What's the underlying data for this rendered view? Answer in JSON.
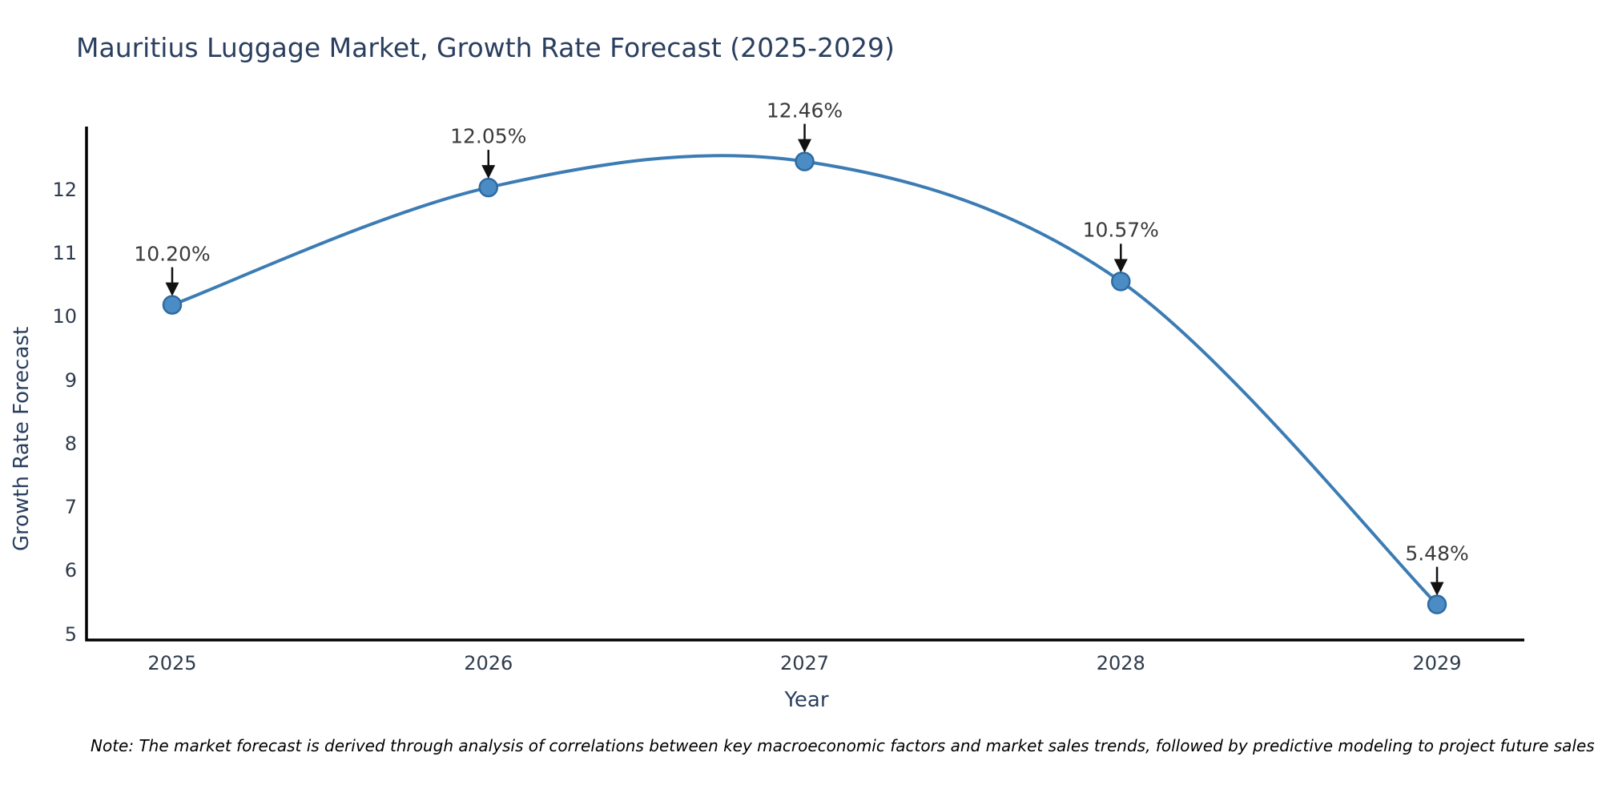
{
  "title": "Mauritius Luggage Market, Growth Rate Forecast (2025-2029)",
  "note": "Note: The market forecast is derived through analysis of correlations between key macroeconomic factors and market sales trends, followed by predictive modeling to project future sales",
  "chart_data": {
    "type": "line",
    "title": "Mauritius Luggage Market, Growth Rate Forecast (2025-2029)",
    "x": [
      2025,
      2026,
      2027,
      2028,
      2029
    ],
    "series": [
      {
        "name": "Growth Rate Forecast",
        "values": [
          10.2,
          12.05,
          12.46,
          10.57,
          5.48
        ]
      }
    ],
    "point_labels": [
      "10.20%",
      "12.05%",
      "12.46%",
      "10.57%",
      "5.48%"
    ],
    "xlabel": "Year",
    "ylabel": "Growth Rate Forecast",
    "yticks": [
      5,
      6,
      7,
      8,
      9,
      10,
      11,
      12
    ],
    "xlim": [
      2024.729,
      2029.276
    ],
    "ylim": [
      4.92,
      13.01
    ],
    "grid": false,
    "legend_position": "none",
    "line_color": "#3c7cb4",
    "marker_fill": "#4c8cc4",
    "marker_edge": "#2e6ba3",
    "arrow_color": "#111111",
    "axis_color": "#000000",
    "annotation_color": "#3a3a3a",
    "text_color": "#2a3f5f"
  }
}
